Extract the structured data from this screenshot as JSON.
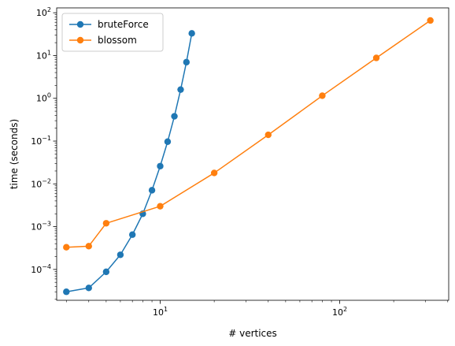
{
  "chart_data": {
    "type": "line",
    "title": "",
    "xlabel": "# vertices",
    "ylabel": "time (seconds)",
    "x_scale": "log",
    "y_scale": "log",
    "xlim": [
      2.65,
      405
    ],
    "ylim": [
      1.9e-05,
      130
    ],
    "grid": false,
    "legend_position": "top-left",
    "x_ticks": [
      {
        "value": 10,
        "base": "10",
        "exp": "1"
      },
      {
        "value": 100,
        "base": "10",
        "exp": "2"
      }
    ],
    "y_ticks": [
      {
        "value": 0.0001,
        "base": "10",
        "exp": "−4"
      },
      {
        "value": 0.001,
        "base": "10",
        "exp": "−3"
      },
      {
        "value": 0.01,
        "base": "10",
        "exp": "−2"
      },
      {
        "value": 0.1,
        "base": "10",
        "exp": "−1"
      },
      {
        "value": 1,
        "base": "10",
        "exp": "0"
      },
      {
        "value": 10,
        "base": "10",
        "exp": "1"
      },
      {
        "value": 100,
        "base": "10",
        "exp": "2"
      }
    ],
    "series": [
      {
        "name": "bruteForce",
        "color": "#1f77b4",
        "x": [
          3,
          4,
          5,
          6,
          7,
          8,
          9,
          10,
          11,
          12,
          13,
          14,
          15
        ],
        "y": [
          3e-05,
          3.7e-05,
          8.8e-05,
          0.00022,
          0.00065,
          0.002,
          0.0071,
          0.026,
          0.097,
          0.38,
          1.6,
          7.0,
          33
        ]
      },
      {
        "name": "blossom",
        "color": "#ff7f0e",
        "x": [
          3,
          4,
          5,
          10,
          20,
          40,
          80,
          160,
          320
        ],
        "y": [
          0.00033,
          0.00035,
          0.0012,
          0.003,
          0.018,
          0.14,
          1.15,
          8.8,
          66
        ]
      }
    ]
  }
}
